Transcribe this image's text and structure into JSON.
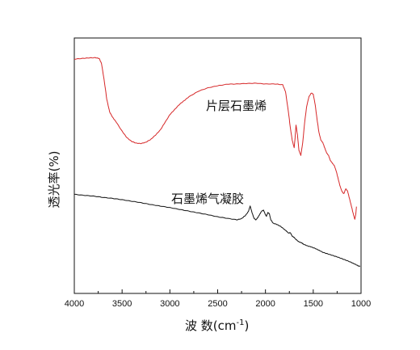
{
  "chart_data": {
    "type": "line",
    "title": "",
    "xlabel": "波  数(cm-1)",
    "xlabel_main": "波  数(cm",
    "xlabel_sup": "-1",
    "xlabel_close": ")",
    "ylabel": "透光率(%)",
    "xlim": [
      4000,
      1000
    ],
    "x_reversed": true,
    "ylim": [
      0,
      100
    ],
    "y_ticks_labeled": false,
    "x_ticks": [
      4000,
      3500,
      3000,
      2500,
      2000,
      1500,
      1000
    ],
    "x_tick_labels": [
      "4000",
      "3500",
      "3000",
      "2500",
      "2000",
      "1500",
      "1000"
    ],
    "grid": false,
    "legend": "none",
    "annotations": [
      {
        "text": "片层石墨烯",
        "series": "red",
        "x": 2280,
        "y": 73
      },
      {
        "text": "石墨烯气凝胶",
        "series": "black",
        "x": 2750,
        "y": 37
      }
    ],
    "series": [
      {
        "color": "#d62728",
        "points": [
          [
            4000,
            91.7
          ],
          [
            3920,
            92.0
          ],
          [
            3850,
            92.2
          ],
          [
            3780,
            92.3
          ],
          [
            3740,
            92.0
          ],
          [
            3715,
            90.0
          ],
          [
            3690,
            84.0
          ],
          [
            3660,
            76.0
          ],
          [
            3630,
            71.0
          ],
          [
            3600,
            69.0
          ],
          [
            3560,
            67.0
          ],
          [
            3500,
            63.5
          ],
          [
            3450,
            61.0
          ],
          [
            3400,
            59.5
          ],
          [
            3350,
            58.8
          ],
          [
            3300,
            58.7
          ],
          [
            3250,
            59.2
          ],
          [
            3200,
            60.3
          ],
          [
            3150,
            62.0
          ],
          [
            3100,
            64.0
          ],
          [
            3050,
            67.0
          ],
          [
            3000,
            70.0
          ],
          [
            2950,
            72.0
          ],
          [
            2900,
            74.0
          ],
          [
            2850,
            75.5
          ],
          [
            2800,
            77.0
          ],
          [
            2700,
            79.2
          ],
          [
            2600,
            80.5
          ],
          [
            2500,
            81.3
          ],
          [
            2400,
            81.9
          ],
          [
            2300,
            82.0
          ],
          [
            2200,
            82.2
          ],
          [
            2100,
            82.3
          ],
          [
            2000,
            82.0
          ],
          [
            1900,
            82.0
          ],
          [
            1820,
            81.7
          ],
          [
            1790,
            79.0
          ],
          [
            1760,
            71.0
          ],
          [
            1740,
            65.0
          ],
          [
            1720,
            60.0
          ],
          [
            1700,
            57.0
          ],
          [
            1690,
            61.0
          ],
          [
            1680,
            66.0
          ],
          [
            1665,
            62.0
          ],
          [
            1650,
            56.0
          ],
          [
            1630,
            54.0
          ],
          [
            1610,
            59.0
          ],
          [
            1590,
            67.0
          ],
          [
            1570,
            73.0
          ],
          [
            1545,
            77.0
          ],
          [
            1520,
            78.5
          ],
          [
            1500,
            78.0
          ],
          [
            1480,
            74.0
          ],
          [
            1460,
            68.0
          ],
          [
            1440,
            63.0
          ],
          [
            1420,
            60.0
          ],
          [
            1400,
            59.0
          ],
          [
            1380,
            57.0
          ],
          [
            1360,
            55.0
          ],
          [
            1340,
            54.0
          ],
          [
            1320,
            52.0
          ],
          [
            1300,
            51.0
          ],
          [
            1280,
            50.0
          ],
          [
            1260,
            48.0
          ],
          [
            1240,
            45.0
          ],
          [
            1220,
            42.0
          ],
          [
            1200,
            40.0
          ],
          [
            1180,
            39.0
          ],
          [
            1160,
            41.0
          ],
          [
            1140,
            40.0
          ],
          [
            1120,
            37.0
          ],
          [
            1100,
            34.0
          ],
          [
            1080,
            31.0
          ],
          [
            1065,
            29.0
          ],
          [
            1055,
            31.0
          ],
          [
            1048,
            34.0
          ]
        ]
      },
      {
        "color": "#111111",
        "points": [
          [
            4000,
            38.8
          ],
          [
            3900,
            38.4
          ],
          [
            3800,
            38.1
          ],
          [
            3700,
            37.6
          ],
          [
            3600,
            37.2
          ],
          [
            3500,
            36.7
          ],
          [
            3400,
            36.1
          ],
          [
            3300,
            35.5
          ],
          [
            3200,
            34.8
          ],
          [
            3100,
            34.2
          ],
          [
            3000,
            33.6
          ],
          [
            2900,
            32.9
          ],
          [
            2800,
            32.2
          ],
          [
            2700,
            31.5
          ],
          [
            2600,
            30.8
          ],
          [
            2500,
            30.0
          ],
          [
            2400,
            29.4
          ],
          [
            2300,
            28.8
          ],
          [
            2250,
            29.3
          ],
          [
            2210,
            30.5
          ],
          [
            2180,
            32.0
          ],
          [
            2160,
            34.2
          ],
          [
            2140,
            31.6
          ],
          [
            2120,
            29.4
          ],
          [
            2100,
            28.8
          ],
          [
            2080,
            29.7
          ],
          [
            2060,
            31.0
          ],
          [
            2040,
            32.2
          ],
          [
            2020,
            32.6
          ],
          [
            2000,
            30.8
          ],
          [
            1990,
            30.2
          ],
          [
            1975,
            31.6
          ],
          [
            1960,
            31.3
          ],
          [
            1945,
            28.9
          ],
          [
            1920,
            27.5
          ],
          [
            1880,
            27.0
          ],
          [
            1840,
            26.2
          ],
          [
            1800,
            25.0
          ],
          [
            1780,
            24.4
          ],
          [
            1760,
            23.6
          ],
          [
            1740,
            23.8
          ],
          [
            1720,
            22.4
          ],
          [
            1700,
            21.9
          ],
          [
            1680,
            21.1
          ],
          [
            1650,
            20.2
          ],
          [
            1620,
            19.8
          ],
          [
            1600,
            19.2
          ],
          [
            1560,
            18.6
          ],
          [
            1520,
            18.2
          ],
          [
            1480,
            17.6
          ],
          [
            1440,
            16.9
          ],
          [
            1400,
            16.1
          ],
          [
            1350,
            15.5
          ],
          [
            1300,
            14.9
          ],
          [
            1250,
            14.3
          ],
          [
            1200,
            13.6
          ],
          [
            1150,
            12.9
          ],
          [
            1100,
            12.1
          ],
          [
            1060,
            11.4
          ],
          [
            1030,
            10.8
          ],
          [
            1010,
            10.6
          ]
        ]
      }
    ]
  }
}
